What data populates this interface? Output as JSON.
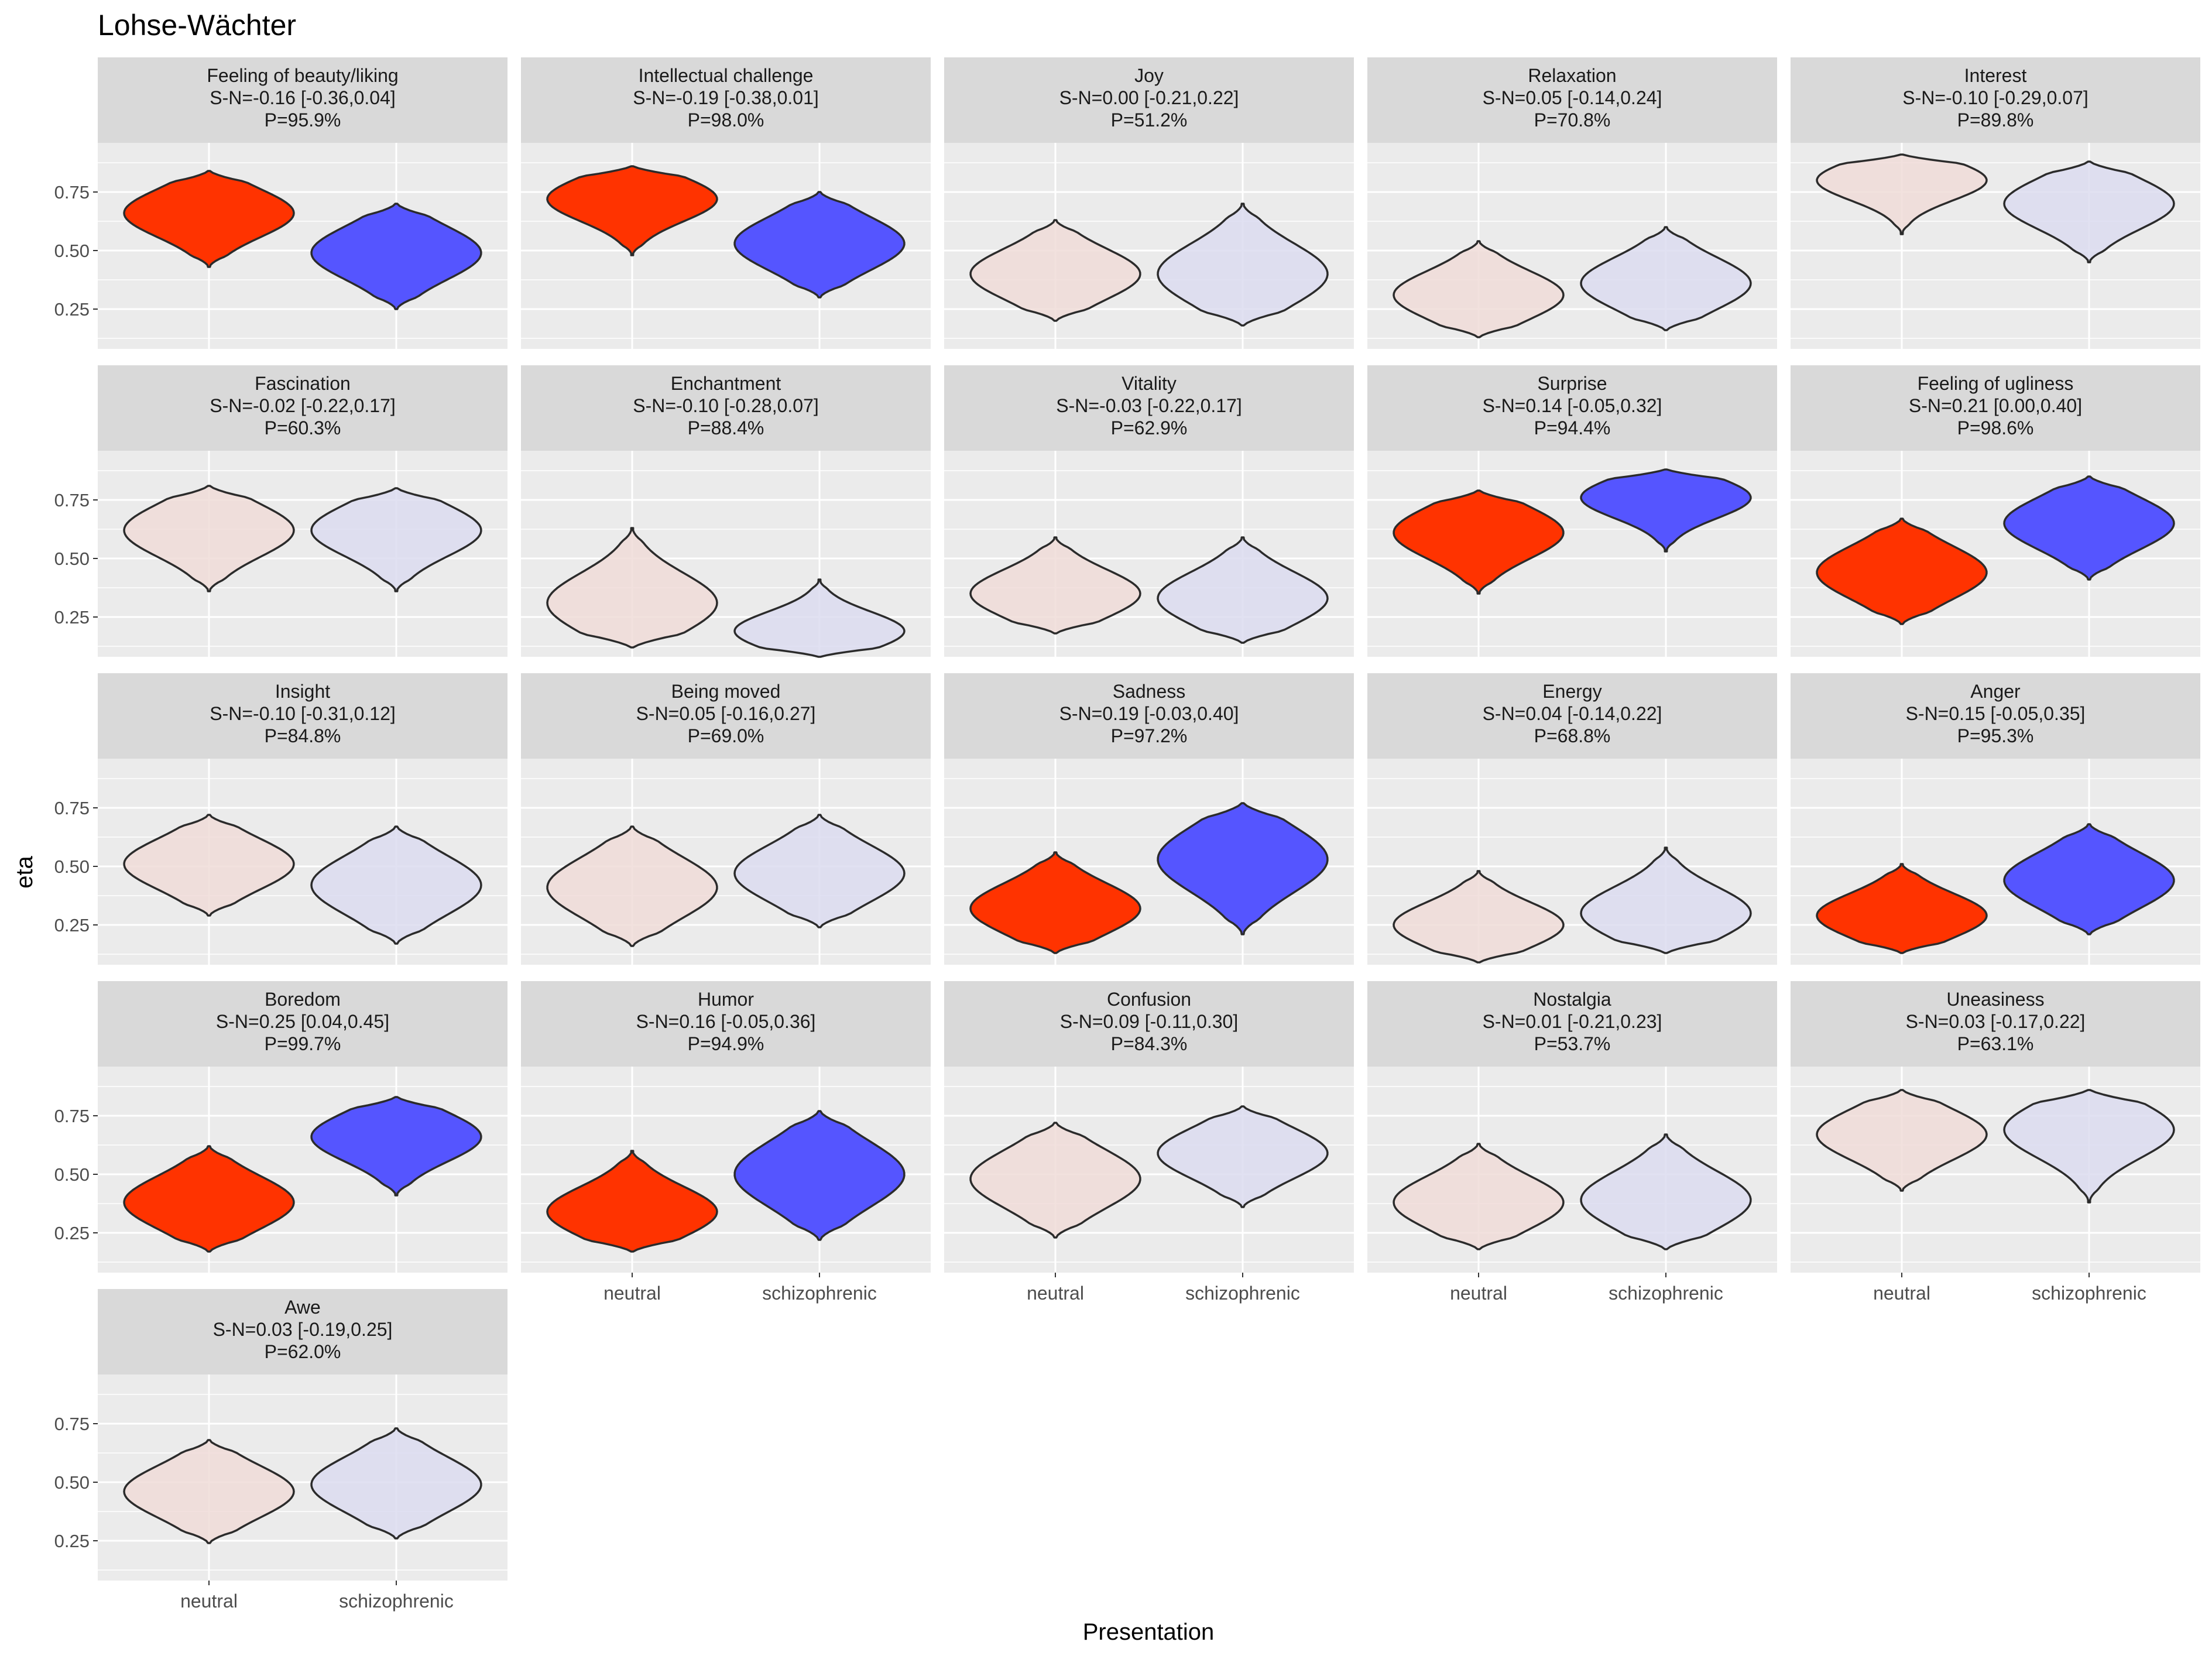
{
  "chart_data": {
    "type": "violin",
    "title": "Lohse-Wächter",
    "xlabel": "Presentation",
    "ylabel": "eta",
    "categories": [
      "neutral",
      "schizophrenic"
    ],
    "y_ticks": [
      "0.25",
      "0.50",
      "0.75"
    ],
    "y_tick_values": [
      0.25,
      0.5,
      0.75
    ],
    "ylim": [
      0.08,
      0.96
    ],
    "grid": true,
    "colors": {
      "neutral_highlight": "#ff3300",
      "schizophrenic_highlight": "#5555ff",
      "neutral_faint": "#f0dcd8",
      "schizophrenic_faint": "#dcdcf0",
      "panel_background": "#ebebeb",
      "strip_background": "#d9d9d9"
    },
    "panels": [
      {
        "name": "Feeling of beauty/liking",
        "stat": "S-N=-0.16 [-0.36,0.04]",
        "prob": "P=95.9%",
        "highlighted": true,
        "neutral": {
          "min": 0.43,
          "center": 0.66,
          "max": 0.84
        },
        "schizophrenic": {
          "min": 0.25,
          "center": 0.49,
          "max": 0.7
        }
      },
      {
        "name": "Intellectual challenge",
        "stat": "S-N=-0.19 [-0.38,0.01]",
        "prob": "P=98.0%",
        "highlighted": true,
        "neutral": {
          "min": 0.48,
          "center": 0.72,
          "max": 0.86
        },
        "schizophrenic": {
          "min": 0.3,
          "center": 0.53,
          "max": 0.75
        }
      },
      {
        "name": "Joy",
        "stat": "S-N=0.00 [-0.21,0.22]",
        "prob": "P=51.2%",
        "highlighted": false,
        "neutral": {
          "min": 0.2,
          "center": 0.4,
          "max": 0.63
        },
        "schizophrenic": {
          "min": 0.18,
          "center": 0.4,
          "max": 0.7
        }
      },
      {
        "name": "Relaxation",
        "stat": "S-N=0.05 [-0.14,0.24]",
        "prob": "P=70.8%",
        "highlighted": false,
        "neutral": {
          "min": 0.13,
          "center": 0.31,
          "max": 0.54
        },
        "schizophrenic": {
          "min": 0.16,
          "center": 0.36,
          "max": 0.6
        }
      },
      {
        "name": "Interest",
        "stat": "S-N=-0.10 [-0.29,0.07]",
        "prob": "P=89.8%",
        "highlighted": false,
        "neutral": {
          "min": 0.57,
          "center": 0.8,
          "max": 0.91
        },
        "schizophrenic": {
          "min": 0.45,
          "center": 0.7,
          "max": 0.88
        }
      },
      {
        "name": "Fascination",
        "stat": "S-N=-0.02 [-0.22,0.17]",
        "prob": "P=60.3%",
        "highlighted": false,
        "neutral": {
          "min": 0.36,
          "center": 0.62,
          "max": 0.81
        },
        "schizophrenic": {
          "min": 0.36,
          "center": 0.62,
          "max": 0.8
        }
      },
      {
        "name": "Enchantment",
        "stat": "S-N=-0.10 [-0.28,0.07]",
        "prob": "P=88.4%",
        "highlighted": false,
        "neutral": {
          "min": 0.12,
          "center": 0.31,
          "max": 0.63
        },
        "schizophrenic": {
          "min": 0.08,
          "center": 0.19,
          "max": 0.41
        }
      },
      {
        "name": "Vitality",
        "stat": "S-N=-0.03 [-0.22,0.17]",
        "prob": "P=62.9%",
        "highlighted": false,
        "neutral": {
          "min": 0.18,
          "center": 0.35,
          "max": 0.59
        },
        "schizophrenic": {
          "min": 0.14,
          "center": 0.33,
          "max": 0.59
        }
      },
      {
        "name": "Surprise",
        "stat": "S-N=0.14 [-0.05,0.32]",
        "prob": "P=94.4%",
        "highlighted": true,
        "neutral": {
          "min": 0.35,
          "center": 0.61,
          "max": 0.79
        },
        "schizophrenic": {
          "min": 0.53,
          "center": 0.76,
          "max": 0.88
        }
      },
      {
        "name": "Feeling of ugliness",
        "stat": "S-N=0.21 [0.00,0.40]",
        "prob": "P=98.6%",
        "highlighted": true,
        "neutral": {
          "min": 0.22,
          "center": 0.44,
          "max": 0.67
        },
        "schizophrenic": {
          "min": 0.41,
          "center": 0.65,
          "max": 0.85
        }
      },
      {
        "name": "Insight",
        "stat": "S-N=-0.10 [-0.31,0.12]",
        "prob": "P=84.8%",
        "highlighted": false,
        "neutral": {
          "min": 0.29,
          "center": 0.51,
          "max": 0.72
        },
        "schizophrenic": {
          "min": 0.17,
          "center": 0.42,
          "max": 0.67
        }
      },
      {
        "name": "Being moved",
        "stat": "S-N=0.05 [-0.16,0.27]",
        "prob": "P=69.0%",
        "highlighted": false,
        "neutral": {
          "min": 0.16,
          "center": 0.41,
          "max": 0.67
        },
        "schizophrenic": {
          "min": 0.24,
          "center": 0.47,
          "max": 0.72
        }
      },
      {
        "name": "Sadness",
        "stat": "S-N=0.19 [-0.03,0.40]",
        "prob": "P=97.2%",
        "highlighted": true,
        "neutral": {
          "min": 0.13,
          "center": 0.32,
          "max": 0.56
        },
        "schizophrenic": {
          "min": 0.21,
          "center": 0.53,
          "max": 0.77
        }
      },
      {
        "name": "Energy",
        "stat": "S-N=0.04 [-0.14,0.22]",
        "prob": "P=68.8%",
        "highlighted": false,
        "neutral": {
          "min": 0.09,
          "center": 0.25,
          "max": 0.48
        },
        "schizophrenic": {
          "min": 0.13,
          "center": 0.3,
          "max": 0.58
        }
      },
      {
        "name": "Anger",
        "stat": "S-N=0.15 [-0.05,0.35]",
        "prob": "P=95.3%",
        "highlighted": true,
        "neutral": {
          "min": 0.13,
          "center": 0.29,
          "max": 0.51
        },
        "schizophrenic": {
          "min": 0.21,
          "center": 0.44,
          "max": 0.68
        }
      },
      {
        "name": "Boredom",
        "stat": "S-N=0.25 [0.04,0.45]",
        "prob": "P=99.7%",
        "highlighted": true,
        "neutral": {
          "min": 0.17,
          "center": 0.38,
          "max": 0.62
        },
        "schizophrenic": {
          "min": 0.41,
          "center": 0.66,
          "max": 0.83
        }
      },
      {
        "name": "Humor",
        "stat": "S-N=0.16 [-0.05,0.36]",
        "prob": "P=94.9%",
        "highlighted": true,
        "neutral": {
          "min": 0.17,
          "center": 0.34,
          "max": 0.6
        },
        "schizophrenic": {
          "min": 0.22,
          "center": 0.5,
          "max": 0.77
        }
      },
      {
        "name": "Confusion",
        "stat": "S-N=0.09 [-0.11,0.30]",
        "prob": "P=84.3%",
        "highlighted": false,
        "neutral": {
          "min": 0.23,
          "center": 0.48,
          "max": 0.72
        },
        "schizophrenic": {
          "min": 0.36,
          "center": 0.59,
          "max": 0.79
        }
      },
      {
        "name": "Nostalgia",
        "stat": "S-N=0.01 [-0.21,0.23]",
        "prob": "P=53.7%",
        "highlighted": false,
        "neutral": {
          "min": 0.18,
          "center": 0.38,
          "max": 0.63
        },
        "schizophrenic": {
          "min": 0.18,
          "center": 0.39,
          "max": 0.67
        }
      },
      {
        "name": "Uneasiness",
        "stat": "S-N=0.03 [-0.17,0.22]",
        "prob": "P=63.1%",
        "highlighted": false,
        "neutral": {
          "min": 0.43,
          "center": 0.67,
          "max": 0.86
        },
        "schizophrenic": {
          "min": 0.38,
          "center": 0.69,
          "max": 0.86
        }
      },
      {
        "name": "Awe",
        "stat": "S-N=0.03 [-0.19,0.25]",
        "prob": "P=62.0%",
        "highlighted": false,
        "neutral": {
          "min": 0.24,
          "center": 0.46,
          "max": 0.68
        },
        "schizophrenic": {
          "min": 0.26,
          "center": 0.49,
          "max": 0.73
        }
      }
    ]
  }
}
